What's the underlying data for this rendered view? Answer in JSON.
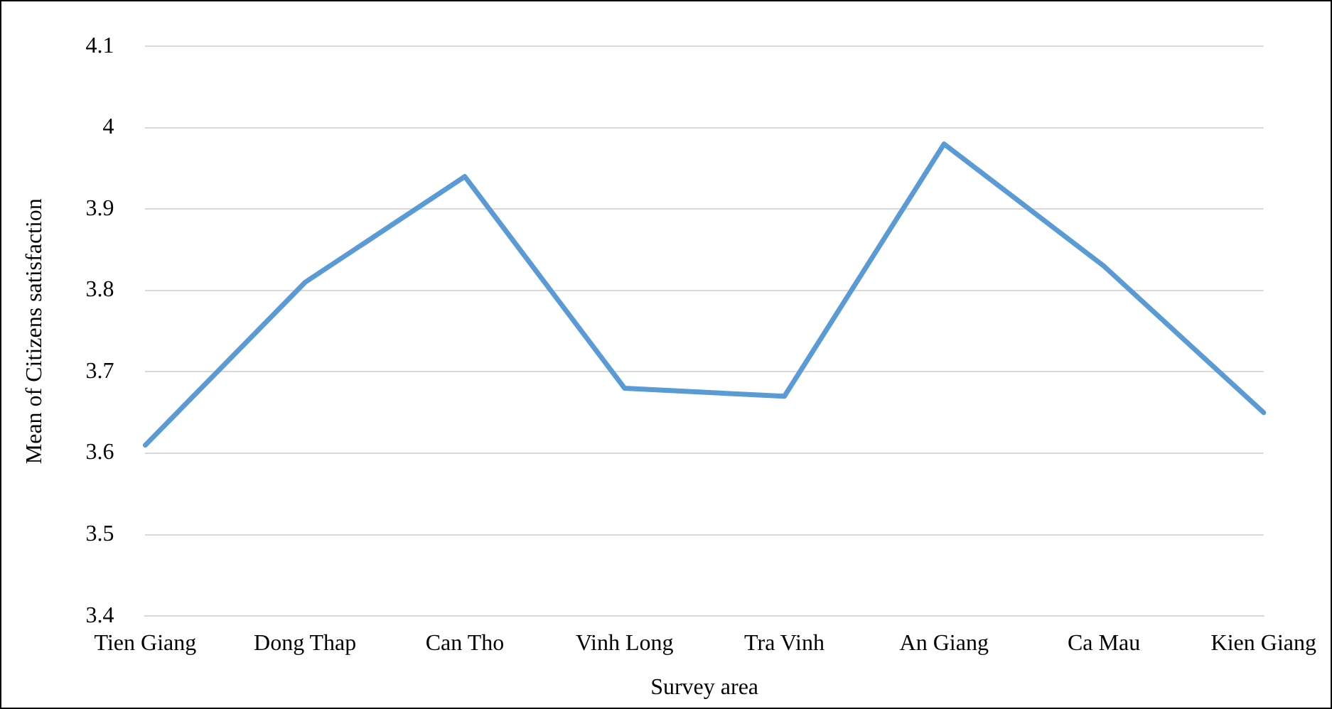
{
  "chart_data": {
    "type": "line",
    "xlabel": "Survey area",
    "ylabel": "Mean of Citizens satisfaction",
    "categories": [
      "Tien Giang",
      "Dong Thap",
      "Can Tho",
      "Vinh Long",
      "Tra Vinh",
      "An Giang",
      "Ca Mau",
      "Kien Giang"
    ],
    "series": [
      {
        "color": "#5b9bd5",
        "values": [
          3.61,
          3.81,
          3.94,
          3.68,
          3.67,
          3.98,
          3.83,
          3.65
        ]
      }
    ],
    "ylim": [
      3.4,
      4.1
    ],
    "yticks": [
      3.4,
      3.5,
      3.6,
      3.7,
      3.8,
      3.9,
      4,
      4.1
    ],
    "grid": "y",
    "legend": false,
    "marker": "none",
    "line_style": "solid"
  }
}
